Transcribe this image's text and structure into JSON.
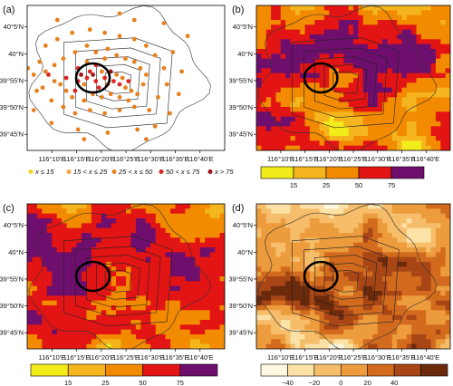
{
  "panels": [
    {
      "label": "(a)",
      "type": "stations",
      "legend_items": [
        {
          "text": "x ≤ 15",
          "color": "#f2d21c"
        },
        {
          "text": "15 < x ≤ 25",
          "color": "#f1a53a"
        },
        {
          "text": "25 < x ≤ 50",
          "color": "#e8801e"
        },
        {
          "text": "50 < x ≤ 75",
          "color": "#e02424"
        },
        {
          "text": "x > 75",
          "color": "#9c1414"
        }
      ],
      "stations": [
        {
          "lon": 116.245,
          "lat": 39.885,
          "v": 60
        },
        {
          "lon": 116.255,
          "lat": 39.915,
          "v": 55
        },
        {
          "lon": 116.265,
          "lat": 39.935,
          "v": 80
        },
        {
          "lon": 116.275,
          "lat": 39.905,
          "v": 45
        },
        {
          "lon": 116.285,
          "lat": 39.925,
          "v": 62
        },
        {
          "lon": 116.295,
          "lat": 39.945,
          "v": 58
        },
        {
          "lon": 116.305,
          "lat": 39.935,
          "v": 78
        },
        {
          "lon": 116.315,
          "lat": 39.915,
          "v": 66
        },
        {
          "lon": 116.325,
          "lat": 39.895,
          "v": 52
        },
        {
          "lon": 116.335,
          "lat": 39.945,
          "v": 40
        },
        {
          "lon": 116.345,
          "lat": 39.925,
          "v": 70
        },
        {
          "lon": 116.355,
          "lat": 39.905,
          "v": 45
        },
        {
          "lon": 116.365,
          "lat": 39.945,
          "v": 88
        },
        {
          "lon": 116.375,
          "lat": 39.915,
          "v": 56
        },
        {
          "lon": 116.385,
          "lat": 39.935,
          "v": 42
        },
        {
          "lon": 116.395,
          "lat": 39.905,
          "v": 60
        },
        {
          "lon": 116.405,
          "lat": 39.925,
          "v": 35
        },
        {
          "lon": 116.415,
          "lat": 39.895,
          "v": 48
        },
        {
          "lon": 116.425,
          "lat": 39.915,
          "v": 64
        },
        {
          "lon": 116.435,
          "lat": 39.885,
          "v": 38
        },
        {
          "lon": 116.315,
          "lat": 39.965,
          "v": 55
        },
        {
          "lon": 116.345,
          "lat": 39.985,
          "v": 40
        },
        {
          "lon": 116.285,
          "lat": 39.975,
          "v": 45
        },
        {
          "lon": 116.255,
          "lat": 39.955,
          "v": 72
        },
        {
          "lon": 116.215,
          "lat": 39.925,
          "v": 60
        },
        {
          "lon": 116.195,
          "lat": 39.905,
          "v": 36
        },
        {
          "lon": 116.175,
          "lat": 39.915,
          "v": 40
        },
        {
          "lon": 116.155,
          "lat": 39.935,
          "v": 58
        },
        {
          "lon": 116.135,
          "lat": 39.895,
          "v": 42
        },
        {
          "lon": 116.145,
          "lat": 39.945,
          "v": 30
        },
        {
          "lon": 116.215,
          "lat": 39.885,
          "v": 35
        },
        {
          "lon": 116.235,
          "lat": 39.865,
          "v": 42
        },
        {
          "lon": 116.275,
          "lat": 39.855,
          "v": 48
        },
        {
          "lon": 116.305,
          "lat": 39.875,
          "v": 40
        },
        {
          "lon": 116.335,
          "lat": 39.865,
          "v": 44
        },
        {
          "lon": 116.365,
          "lat": 39.875,
          "v": 36
        },
        {
          "lon": 116.395,
          "lat": 39.865,
          "v": 30
        },
        {
          "lon": 116.425,
          "lat": 39.855,
          "v": 45
        },
        {
          "lon": 116.455,
          "lat": 39.875,
          "v": 28
        },
        {
          "lon": 116.475,
          "lat": 39.905,
          "v": 40
        },
        {
          "lon": 116.485,
          "lat": 39.935,
          "v": 32
        },
        {
          "lon": 116.465,
          "lat": 39.955,
          "v": 48
        },
        {
          "lon": 116.445,
          "lat": 39.975,
          "v": 36
        },
        {
          "lon": 116.415,
          "lat": 39.985,
          "v": 42
        },
        {
          "lon": 116.385,
          "lat": 39.995,
          "v": 30
        },
        {
          "lon": 116.355,
          "lat": 40.015,
          "v": 38
        },
        {
          "lon": 116.315,
          "lat": 40.005,
          "v": 44
        },
        {
          "lon": 116.285,
          "lat": 40.025,
          "v": 32
        },
        {
          "lon": 116.245,
          "lat": 40.005,
          "v": 40
        },
        {
          "lon": 116.205,
          "lat": 39.985,
          "v": 36
        },
        {
          "lon": 116.175,
          "lat": 39.965,
          "v": 42
        },
        {
          "lon": 116.125,
          "lat": 39.975,
          "v": 30
        },
        {
          "lon": 116.105,
          "lat": 39.935,
          "v": 38
        },
        {
          "lon": 116.115,
          "lat": 39.885,
          "v": 34
        },
        {
          "lon": 116.165,
          "lat": 39.855,
          "v": 40
        },
        {
          "lon": 116.205,
          "lat": 39.835,
          "v": 32
        },
        {
          "lon": 116.245,
          "lat": 39.815,
          "v": 38
        },
        {
          "lon": 116.295,
          "lat": 39.825,
          "v": 44
        },
        {
          "lon": 116.345,
          "lat": 39.815,
          "v": 36
        },
        {
          "lon": 116.395,
          "lat": 39.825,
          "v": 30
        },
        {
          "lon": 116.445,
          "lat": 39.835,
          "v": 42
        },
        {
          "lon": 116.495,
          "lat": 39.825,
          "v": 34
        },
        {
          "lon": 116.525,
          "lat": 39.865,
          "v": 28
        },
        {
          "lon": 116.555,
          "lat": 39.905,
          "v": 36
        },
        {
          "lon": 116.545,
          "lat": 39.955,
          "v": 30
        },
        {
          "lon": 116.515,
          "lat": 39.995,
          "v": 38
        },
        {
          "lon": 116.485,
          "lat": 40.025,
          "v": 34
        },
        {
          "lon": 116.445,
          "lat": 40.045,
          "v": 40
        },
        {
          "lon": 116.395,
          "lat": 40.055,
          "v": 32
        },
        {
          "lon": 116.345,
          "lat": 40.065,
          "v": 30
        },
        {
          "lon": 116.295,
          "lat": 40.075,
          "v": 36
        },
        {
          "lon": 116.235,
          "lat": 40.065,
          "v": 34
        },
        {
          "lon": 116.185,
          "lat": 40.045,
          "v": 38
        },
        {
          "lon": 116.145,
          "lat": 40.025,
          "v": 32
        },
        {
          "lon": 116.575,
          "lat": 40.005,
          "v": 40
        },
        {
          "lon": 116.605,
          "lat": 39.945,
          "v": 30
        },
        {
          "lon": 116.595,
          "lat": 39.875,
          "v": 36
        },
        {
          "lon": 116.565,
          "lat": 39.815,
          "v": 32
        },
        {
          "lon": 116.515,
          "lat": 39.775,
          "v": 30
        },
        {
          "lon": 116.455,
          "lat": 39.765,
          "v": 38
        },
        {
          "lon": 116.355,
          "lat": 39.755,
          "v": 34
        },
        {
          "lon": 116.255,
          "lat": 39.765,
          "v": 30
        },
        {
          "lon": 116.165,
          "lat": 39.785,
          "v": 36
        },
        {
          "lon": 116.105,
          "lat": 39.825,
          "v": 32
        },
        {
          "lon": 116.545,
          "lat": 40.095,
          "v": 30
        },
        {
          "lon": 116.445,
          "lat": 40.105,
          "v": 36
        },
        {
          "lon": 116.185,
          "lat": 40.105,
          "v": 30
        },
        {
          "lon": 116.625,
          "lat": 40.055,
          "v": 34
        },
        {
          "lon": 116.085,
          "lat": 39.955,
          "v": 40
        },
        {
          "lon": 116.275,
          "lat": 39.735,
          "v": 30
        },
        {
          "lon": 116.485,
          "lat": 39.735,
          "v": 28
        },
        {
          "lon": 116.395,
          "lat": 40.125,
          "v": 32
        }
      ]
    },
    {
      "label": "(b)",
      "type": "field",
      "colorbar": {
        "colors": [
          "#f2ec1a",
          "#f4b51e",
          "#f28b00",
          "#e31414",
          "#6e0f6e"
        ],
        "labels": [
          "15",
          "25",
          "50",
          "75"
        ]
      }
    },
    {
      "label": "(c)",
      "type": "field",
      "colorbar": {
        "colors": [
          "#f2ec1a",
          "#f4b51e",
          "#f28b00",
          "#e31414",
          "#6e0f6e"
        ],
        "labels": [
          "15",
          "25",
          "50",
          "75"
        ]
      }
    },
    {
      "label": "(d)",
      "type": "diff",
      "colorbar": {
        "colors": [
          "#fff8e1",
          "#fce2a6",
          "#f6bd6a",
          "#ec9c3c",
          "#d26b1e",
          "#a84616",
          "#6b2a0c"
        ],
        "labels": [
          "−40",
          "−20",
          "0",
          "20",
          "40"
        ]
      }
    }
  ],
  "lon_ticks": [
    "116°10′E",
    "116°15′E",
    "116°20′E",
    "116°25′E",
    "116°30′E",
    "116°35′E",
    "116°40′E"
  ],
  "lat_ticks": [
    "40°5′N",
    "40°N",
    "39°55′N",
    "39°50′N",
    "39°45′N"
  ]
}
